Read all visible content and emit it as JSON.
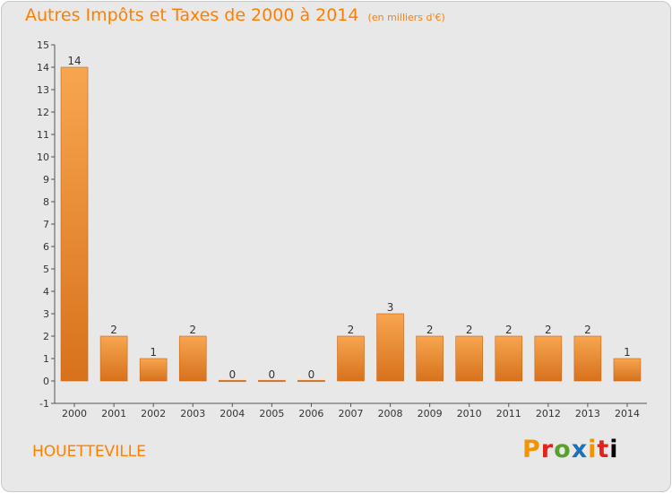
{
  "title": "Autres Impôts et Taxes de 2000 à 2014",
  "unit": "(en milliers d'€)",
  "commune": "HOUETTEVILLE",
  "logo": [
    "P",
    "r",
    "o",
    "x",
    "i",
    "t",
    "i"
  ],
  "colors": {
    "title": "#ff7f00",
    "bar_light": "#f6a24d",
    "bar_dark": "#d8731f",
    "background": "#e8e8e8"
  },
  "chart_data": {
    "type": "bar",
    "title": "Autres Impôts et Taxes de 2000 à 2014",
    "categories": [
      "2000",
      "2001",
      "2002",
      "2003",
      "2004",
      "2005",
      "2006",
      "2007",
      "2008",
      "2009",
      "2010",
      "2011",
      "2012",
      "2013",
      "2014"
    ],
    "values": [
      14,
      2,
      1,
      2,
      0,
      0,
      0,
      2,
      3,
      2,
      2,
      2,
      2,
      2,
      1
    ],
    "data_labels": [
      "14",
      "2",
      "1",
      "2",
      "0",
      "0",
      "0",
      "2",
      "3",
      "2",
      "2",
      "2",
      "2",
      "2",
      "1"
    ],
    "ylim": [
      -1,
      15
    ],
    "yticks": [
      "-1",
      "0",
      "1",
      "2",
      "3",
      "4",
      "5",
      "6",
      "7",
      "8",
      "9",
      "10",
      "11",
      "12",
      "13",
      "14",
      "15"
    ],
    "grid": false,
    "legend": "none"
  }
}
